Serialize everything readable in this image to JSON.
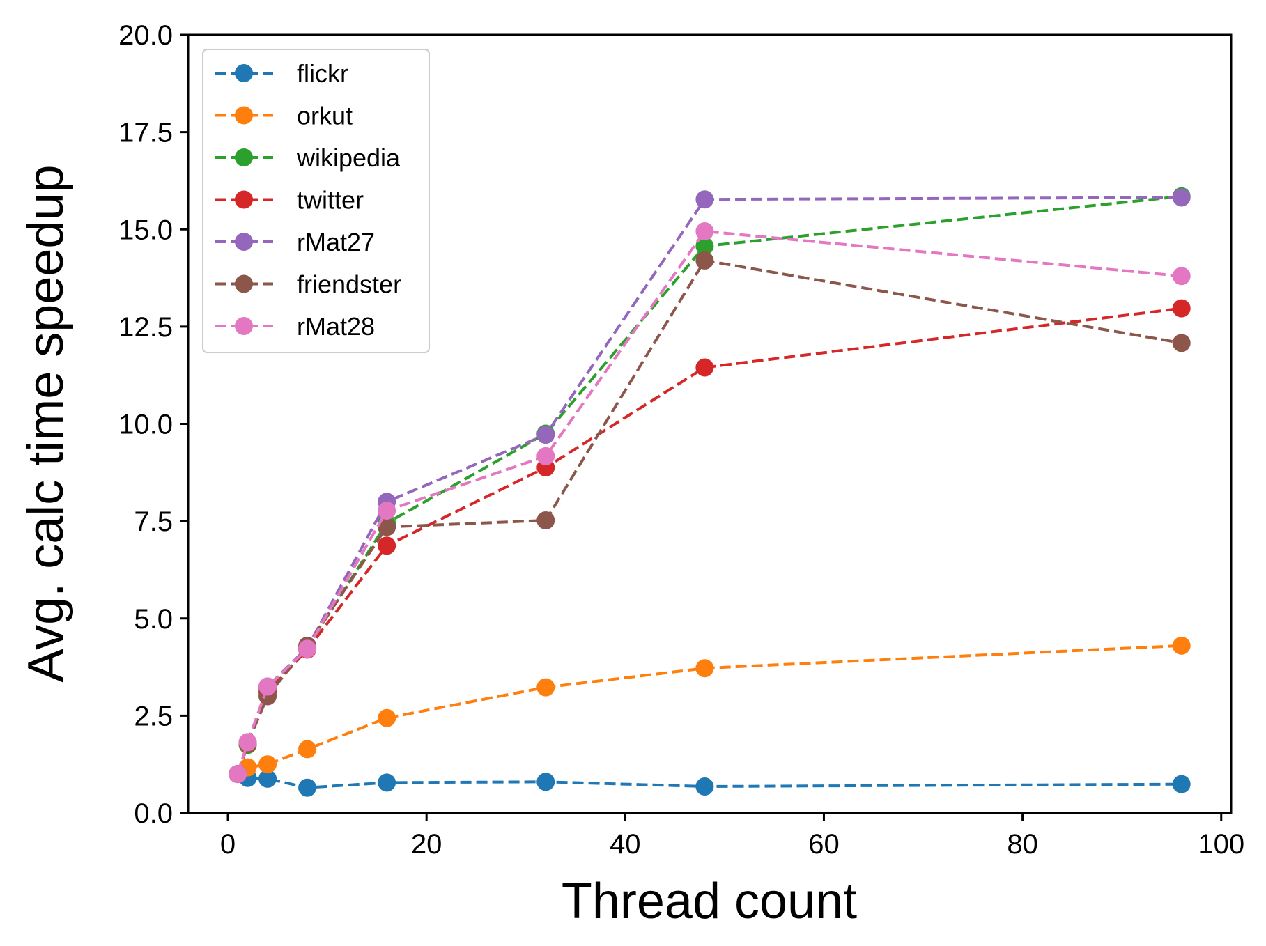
{
  "chart_data": {
    "type": "line",
    "xlabel": "Thread count",
    "ylabel": "Avg. calc time speedup",
    "xlim": [
      -4,
      101
    ],
    "ylim": [
      0,
      20
    ],
    "xticks": [
      0,
      20,
      40,
      60,
      80,
      100
    ],
    "yticks": [
      0.0,
      2.5,
      5.0,
      7.5,
      10.0,
      12.5,
      15.0,
      17.5,
      20.0
    ],
    "ytick_labels": [
      "0.0",
      "2.5",
      "5.0",
      "7.5",
      "10.0",
      "12.5",
      "15.0",
      "17.5",
      "20.0"
    ],
    "grid": false,
    "legend_position": "top-left",
    "line_style": "dashed",
    "marker": "circle",
    "series": [
      {
        "name": "flickr",
        "color": "#1f77b4",
        "x": [
          1,
          2,
          4,
          8,
          16,
          32,
          48,
          96
        ],
        "y": [
          1.0,
          0.9,
          0.88,
          0.65,
          0.78,
          0.8,
          0.68,
          0.74
        ]
      },
      {
        "name": "orkut",
        "color": "#ff7f0e",
        "x": [
          1,
          2,
          4,
          8,
          16,
          32,
          48,
          96
        ],
        "y": [
          1.0,
          1.17,
          1.25,
          1.64,
          2.44,
          3.23,
          3.72,
          4.3
        ]
      },
      {
        "name": "wikipedia",
        "color": "#2ca02c",
        "x": [
          1,
          2,
          4,
          8,
          16,
          32,
          48,
          96
        ],
        "y": [
          1.0,
          1.75,
          3.2,
          4.25,
          7.45,
          9.75,
          14.57,
          15.85
        ]
      },
      {
        "name": "twitter",
        "color": "#d62728",
        "x": [
          1,
          2,
          4,
          8,
          16,
          32,
          48,
          96
        ],
        "y": [
          1.0,
          1.78,
          3.1,
          4.2,
          6.87,
          8.88,
          11.45,
          12.97
        ]
      },
      {
        "name": "rMat27",
        "color": "#9467bd",
        "x": [
          1,
          2,
          4,
          8,
          16,
          32,
          48,
          96
        ],
        "y": [
          1.0,
          1.8,
          3.25,
          4.25,
          8.0,
          9.72,
          15.77,
          15.82
        ]
      },
      {
        "name": "friendster",
        "color": "#8c564b",
        "x": [
          1,
          2,
          4,
          8,
          16,
          32,
          48,
          96
        ],
        "y": [
          1.0,
          1.8,
          3.0,
          4.3,
          7.35,
          7.52,
          14.2,
          12.08
        ]
      },
      {
        "name": "rMat28",
        "color": "#e377c2",
        "x": [
          1,
          2,
          4,
          8,
          16,
          32,
          48,
          96
        ],
        "y": [
          1.0,
          1.82,
          3.25,
          4.22,
          7.77,
          9.17,
          14.95,
          13.8
        ]
      }
    ]
  }
}
